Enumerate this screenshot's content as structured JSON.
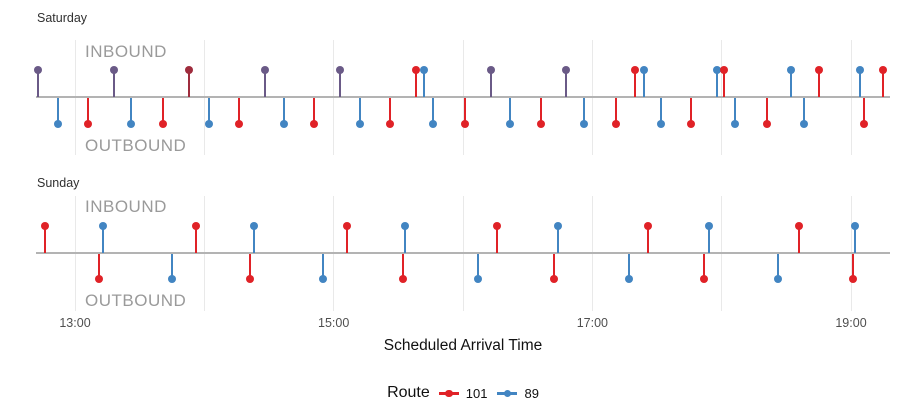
{
  "chart_data": {
    "type": "lollipop-timeline",
    "title": "",
    "x_axis": {
      "label": "Scheduled Arrival Time",
      "ticks": [
        "13:00",
        "15:00",
        "17:00",
        "19:00"
      ],
      "grid_hours": [
        13,
        14,
        15,
        16,
        17,
        18,
        19
      ],
      "range": [
        "12:40",
        "19:20"
      ]
    },
    "direction_labels": {
      "inbound": "INBOUND",
      "outbound": "OUTBOUND"
    },
    "legend": {
      "title": "Route",
      "entries": [
        {
          "label": "101",
          "color": "#E02227"
        },
        {
          "label": "89",
          "color": "#4285C2"
        }
      ]
    },
    "colors": {
      "red": "#E02227",
      "blue": "#4285C2",
      "purple": "#6A5A87",
      "maroon": "#9F2C3D",
      "baseline": "#b3b3b3",
      "gridline": "#e9e9e9"
    },
    "panels": [
      {
        "label": "Saturday",
        "points": [
          {
            "time": "12:43",
            "route": "101+89",
            "direction": "inbound",
            "color": "purple"
          },
          {
            "time": "13:18",
            "route": "101+89",
            "direction": "inbound",
            "color": "purple"
          },
          {
            "time": "13:53",
            "route": "101+89",
            "direction": "inbound",
            "color": "maroon"
          },
          {
            "time": "14:28",
            "route": "101+89",
            "direction": "inbound",
            "color": "purple"
          },
          {
            "time": "15:03",
            "route": "101+89",
            "direction": "inbound",
            "color": "purple"
          },
          {
            "time": "15:38",
            "route": "101",
            "direction": "inbound",
            "color": "red"
          },
          {
            "time": "15:42",
            "route": "89",
            "direction": "inbound",
            "color": "blue"
          },
          {
            "time": "16:13",
            "route": "101+89",
            "direction": "inbound",
            "color": "purple"
          },
          {
            "time": "16:48",
            "route": "101+89",
            "direction": "inbound",
            "color": "purple"
          },
          {
            "time": "17:20",
            "route": "101",
            "direction": "inbound",
            "color": "red"
          },
          {
            "time": "17:24",
            "route": "89",
            "direction": "inbound",
            "color": "blue"
          },
          {
            "time": "17:58",
            "route": "89",
            "direction": "inbound",
            "color": "blue"
          },
          {
            "time": "18:01",
            "route": "101",
            "direction": "inbound",
            "color": "red"
          },
          {
            "time": "18:32",
            "route": "89",
            "direction": "inbound",
            "color": "blue"
          },
          {
            "time": "18:45",
            "route": "101",
            "direction": "inbound",
            "color": "red"
          },
          {
            "time": "19:04",
            "route": "89",
            "direction": "inbound",
            "color": "blue"
          },
          {
            "time": "19:15",
            "route": "101",
            "direction": "inbound",
            "color": "red"
          },
          {
            "time": "12:52",
            "route": "89",
            "direction": "outbound",
            "color": "blue"
          },
          {
            "time": "13:06",
            "route": "101",
            "direction": "outbound",
            "color": "red"
          },
          {
            "time": "13:26",
            "route": "89",
            "direction": "outbound",
            "color": "blue"
          },
          {
            "time": "13:41",
            "route": "101",
            "direction": "outbound",
            "color": "red"
          },
          {
            "time": "14:02",
            "route": "89",
            "direction": "outbound",
            "color": "blue"
          },
          {
            "time": "14:16",
            "route": "101",
            "direction": "outbound",
            "color": "red"
          },
          {
            "time": "14:37",
            "route": "89",
            "direction": "outbound",
            "color": "blue"
          },
          {
            "time": "14:51",
            "route": "101",
            "direction": "outbound",
            "color": "red"
          },
          {
            "time": "15:12",
            "route": "89",
            "direction": "outbound",
            "color": "blue"
          },
          {
            "time": "15:26",
            "route": "101",
            "direction": "outbound",
            "color": "red"
          },
          {
            "time": "15:46",
            "route": "89",
            "direction": "outbound",
            "color": "blue"
          },
          {
            "time": "16:01",
            "route": "101",
            "direction": "outbound",
            "color": "red"
          },
          {
            "time": "16:22",
            "route": "89",
            "direction": "outbound",
            "color": "blue"
          },
          {
            "time": "16:36",
            "route": "101",
            "direction": "outbound",
            "color": "red"
          },
          {
            "time": "16:56",
            "route": "89",
            "direction": "outbound",
            "color": "blue"
          },
          {
            "time": "17:11",
            "route": "101",
            "direction": "outbound",
            "color": "red"
          },
          {
            "time": "17:32",
            "route": "89",
            "direction": "outbound",
            "color": "blue"
          },
          {
            "time": "17:46",
            "route": "101",
            "direction": "outbound",
            "color": "red"
          },
          {
            "time": "18:06",
            "route": "89",
            "direction": "outbound",
            "color": "blue"
          },
          {
            "time": "18:21",
            "route": "101",
            "direction": "outbound",
            "color": "red"
          },
          {
            "time": "18:38",
            "route": "89",
            "direction": "outbound",
            "color": "blue"
          },
          {
            "time": "19:06",
            "route": "101",
            "direction": "outbound",
            "color": "red"
          }
        ]
      },
      {
        "label": "Sunday",
        "points": [
          {
            "time": "12:46",
            "route": "101",
            "direction": "inbound",
            "color": "red"
          },
          {
            "time": "13:13",
            "route": "89",
            "direction": "inbound",
            "color": "blue"
          },
          {
            "time": "13:56",
            "route": "101",
            "direction": "inbound",
            "color": "red"
          },
          {
            "time": "14:23",
            "route": "89",
            "direction": "inbound",
            "color": "blue"
          },
          {
            "time": "15:06",
            "route": "101",
            "direction": "inbound",
            "color": "red"
          },
          {
            "time": "15:33",
            "route": "89",
            "direction": "inbound",
            "color": "blue"
          },
          {
            "time": "16:16",
            "route": "101",
            "direction": "inbound",
            "color": "red"
          },
          {
            "time": "16:44",
            "route": "89",
            "direction": "inbound",
            "color": "blue"
          },
          {
            "time": "17:26",
            "route": "101",
            "direction": "inbound",
            "color": "red"
          },
          {
            "time": "17:54",
            "route": "89",
            "direction": "inbound",
            "color": "blue"
          },
          {
            "time": "18:36",
            "route": "101",
            "direction": "inbound",
            "color": "red"
          },
          {
            "time": "19:02",
            "route": "89",
            "direction": "inbound",
            "color": "blue"
          },
          {
            "time": "13:11",
            "route": "101",
            "direction": "outbound",
            "color": "red"
          },
          {
            "time": "13:45",
            "route": "89",
            "direction": "outbound",
            "color": "blue"
          },
          {
            "time": "14:21",
            "route": "101",
            "direction": "outbound",
            "color": "red"
          },
          {
            "time": "14:55",
            "route": "89",
            "direction": "outbound",
            "color": "blue"
          },
          {
            "time": "15:32",
            "route": "101",
            "direction": "outbound",
            "color": "red"
          },
          {
            "time": "16:07",
            "route": "89",
            "direction": "outbound",
            "color": "blue"
          },
          {
            "time": "16:42",
            "route": "101",
            "direction": "outbound",
            "color": "red"
          },
          {
            "time": "17:17",
            "route": "89",
            "direction": "outbound",
            "color": "blue"
          },
          {
            "time": "17:52",
            "route": "101",
            "direction": "outbound",
            "color": "red"
          },
          {
            "time": "18:26",
            "route": "89",
            "direction": "outbound",
            "color": "blue"
          },
          {
            "time": "19:01",
            "route": "101",
            "direction": "outbound",
            "color": "red"
          }
        ]
      }
    ]
  }
}
